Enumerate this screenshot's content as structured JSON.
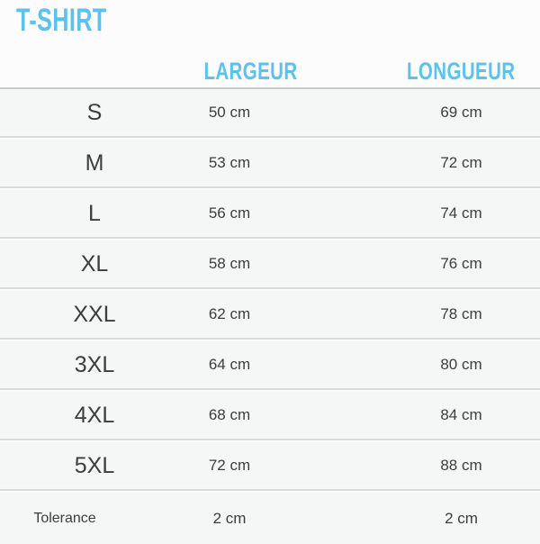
{
  "colors": {
    "accent": "#5bc2ee",
    "row_background": "#f5f6f6",
    "text": "#3b3d3e"
  },
  "chart_data": {
    "type": "table",
    "title": "T-SHIRT",
    "columns": [
      "LARGEUR",
      "LONGUEUR"
    ],
    "rows": [
      {
        "size": "S",
        "largeur": "50 cm",
        "longueur": "69 cm"
      },
      {
        "size": "M",
        "largeur": "53 cm",
        "longueur": "72 cm"
      },
      {
        "size": "L",
        "largeur": "56 cm",
        "longueur": "74 cm"
      },
      {
        "size": "XL",
        "largeur": "58 cm",
        "longueur": "76 cm"
      },
      {
        "size": "XXL",
        "largeur": "62 cm",
        "longueur": "78 cm"
      },
      {
        "size": "3XL",
        "largeur": "64 cm",
        "longueur": "80 cm"
      },
      {
        "size": "4XL",
        "largeur": "68 cm",
        "longueur": "84 cm"
      },
      {
        "size": "5XL",
        "largeur": "72 cm",
        "longueur": "88 cm"
      },
      {
        "size": "Tolerance",
        "largeur": "2 cm",
        "longueur": "2 cm"
      }
    ]
  }
}
